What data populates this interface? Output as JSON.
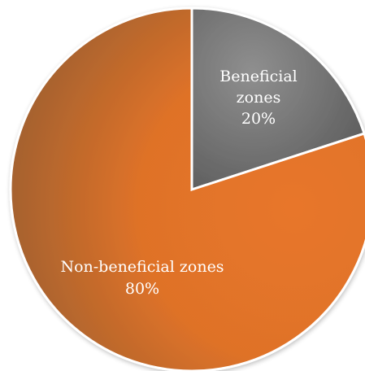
{
  "chart_data": {
    "type": "pie",
    "title": "",
    "start_angle_deg": 0,
    "direction": "clockwise",
    "slices": [
      {
        "label_lines": [
          "Beneficial",
          "zones",
          "20%"
        ],
        "value": 20,
        "color": "#7a7a7a"
      },
      {
        "label_lines": [
          "Non-beneficial zones",
          "80%"
        ],
        "value": 80,
        "color": "#e0752a"
      }
    ]
  }
}
